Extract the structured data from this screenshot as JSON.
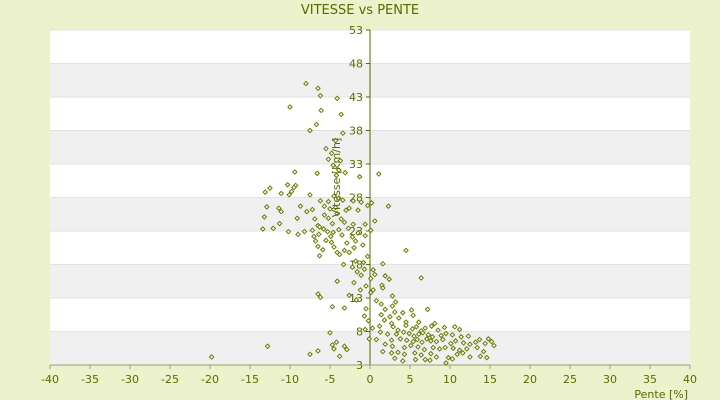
{
  "chart_data": {
    "type": "scatter",
    "title": "VITESSE vs PENTE",
    "xlabel": "Pente [%]",
    "ylabel": "Vitesse [km/h]",
    "xlim": [
      -40,
      40
    ],
    "ylim": [
      3,
      53
    ],
    "xticks": [
      "-40",
      "-35",
      "-30",
      "-25",
      "-20",
      "-15",
      "-10",
      "-5",
      "0",
      "5",
      "10",
      "15",
      "20",
      "25",
      "30",
      "35",
      "40"
    ],
    "yticks": [
      "53",
      "48",
      "43",
      "38",
      "33",
      "28",
      "23",
      "18",
      "13",
      "8",
      "3"
    ],
    "grid": "horizontal alternating bands",
    "colors": {
      "band": "#f0f0f0",
      "plot_bg": "#ffffff",
      "marker": "#6b7a00",
      "axis": "#556b00",
      "background": "#ebf2cc"
    },
    "points": [
      [
        -19.8,
        4.2
      ],
      [
        -12.8,
        5.8
      ],
      [
        -7.5,
        4.6
      ],
      [
        -6.5,
        5.1
      ],
      [
        -4.5,
        5.4
      ],
      [
        -3.8,
        4.3
      ],
      [
        -3.2,
        5.8
      ],
      [
        -2.9,
        5.3
      ],
      [
        -5,
        7.8
      ],
      [
        -4.7,
        6
      ],
      [
        -4.2,
        6.4
      ],
      [
        -8,
        45
      ],
      [
        -6.5,
        44.3
      ],
      [
        -6.2,
        43.2
      ],
      [
        -4.1,
        42.8
      ],
      [
        -10,
        41.5
      ],
      [
        -6.1,
        41
      ],
      [
        -3.6,
        40.4
      ],
      [
        -6.7,
        38.9
      ],
      [
        -7.5,
        38
      ],
      [
        -3.4,
        37.6
      ],
      [
        -4.3,
        36.5
      ],
      [
        -5.5,
        35.3
      ],
      [
        -4.8,
        34.6
      ],
      [
        -5.2,
        33.7
      ],
      [
        -3.7,
        33.5
      ],
      [
        -4.6,
        32.8
      ],
      [
        -3.9,
        32.1
      ],
      [
        -9.4,
        31.8
      ],
      [
        -6.6,
        31.6
      ],
      [
        -4.2,
        31.3
      ],
      [
        -3.1,
        31.7
      ],
      [
        -1.3,
        31.1
      ],
      [
        1.1,
        31.5
      ],
      [
        -10.3,
        29.9
      ],
      [
        -9.3,
        29.8
      ],
      [
        -9.5,
        29.5
      ],
      [
        -12.5,
        29.4
      ],
      [
        -13.1,
        28.8
      ],
      [
        -9.8,
        28.9
      ],
      [
        -10.1,
        28.4
      ],
      [
        -11.1,
        28.6
      ],
      [
        -7.5,
        28.4
      ],
      [
        -4.5,
        28.2
      ],
      [
        -3.9,
        27.9
      ],
      [
        -3.4,
        27.6
      ],
      [
        -5.2,
        27.4
      ],
      [
        -6.2,
        27.5
      ],
      [
        -2.1,
        27.5
      ],
      [
        -1.1,
        27.3
      ],
      [
        0.2,
        27.2
      ],
      [
        -0.3,
        26.8
      ],
      [
        -12.9,
        26.6
      ],
      [
        -11.4,
        26.4
      ],
      [
        -8.7,
        26.7
      ],
      [
        -7.2,
        26.2
      ],
      [
        -5.7,
        26.7
      ],
      [
        -5,
        26.3
      ],
      [
        -4.3,
        26.5
      ],
      [
        -3,
        26.1
      ],
      [
        -2.6,
        26.4
      ],
      [
        -1.5,
        26.1
      ],
      [
        2.3,
        26.7
      ],
      [
        -11.1,
        25.9
      ],
      [
        -7.9,
        25.9
      ],
      [
        -5.7,
        25.4
      ],
      [
        -4.1,
        25.6
      ],
      [
        -13.2,
        25.1
      ],
      [
        -9.1,
        24.9
      ],
      [
        -6.9,
        24.8
      ],
      [
        -5.2,
        24.9
      ],
      [
        -3.6,
        24.8
      ],
      [
        -11.3,
        24.1
      ],
      [
        -6.5,
        23.8
      ],
      [
        -4.7,
        24.1
      ],
      [
        -3.2,
        24.3
      ],
      [
        -2.1,
        24
      ],
      [
        -0.6,
        24
      ],
      [
        0.6,
        24.5
      ],
      [
        -13.4,
        23.3
      ],
      [
        -12.1,
        23.4
      ],
      [
        -10.2,
        22.9
      ],
      [
        -8.2,
        22.9
      ],
      [
        -7.2,
        23.1
      ],
      [
        -6.3,
        23.6
      ],
      [
        -5.8,
        23.3
      ],
      [
        -5.3,
        22.9
      ],
      [
        -4.6,
        22.8
      ],
      [
        -3.9,
        23.2
      ],
      [
        -2.7,
        23.4
      ],
      [
        -1.5,
        22.7
      ],
      [
        0.1,
        23.1
      ],
      [
        -9,
        22.5
      ],
      [
        -7,
        22.2
      ],
      [
        -6.4,
        22.5
      ],
      [
        -4.9,
        22.2
      ],
      [
        -3.5,
        22.4
      ],
      [
        -2.2,
        22.1
      ],
      [
        -0.6,
        22.3
      ],
      [
        -6.8,
        21.5
      ],
      [
        -5.5,
        21.6
      ],
      [
        -4.8,
        21.3
      ],
      [
        -2.9,
        21.2
      ],
      [
        -1.8,
        21.5
      ],
      [
        -6.5,
        20.7
      ],
      [
        -5.9,
        20.2
      ],
      [
        -4.5,
        20.6
      ],
      [
        -3.2,
        20.1
      ],
      [
        -2,
        20.5
      ],
      [
        -0.9,
        20.9
      ],
      [
        -6.3,
        19.3
      ],
      [
        -4.1,
        19.8
      ],
      [
        -2.6,
        19.8
      ],
      [
        -3.8,
        19.5
      ],
      [
        -0.3,
        19.2
      ],
      [
        4.5,
        20.1
      ],
      [
        -1.8,
        18.5
      ],
      [
        -0.8,
        18.3
      ],
      [
        1.6,
        18.1
      ],
      [
        -3.3,
        18
      ],
      [
        -2.2,
        17.6
      ],
      [
        -0.7,
        17.3
      ],
      [
        -1.6,
        16.9
      ],
      [
        0.4,
        17.2
      ],
      [
        -1.1,
        16.4
      ],
      [
        0.6,
        16.5
      ],
      [
        1.9,
        16.3
      ],
      [
        -4.1,
        15.5
      ],
      [
        -2,
        15.3
      ],
      [
        0.1,
        15.9
      ],
      [
        2.4,
        15.8
      ],
      [
        -0.5,
        14.8
      ],
      [
        1.5,
        14.9
      ],
      [
        6.4,
        16
      ],
      [
        -1.2,
        14.2
      ],
      [
        0.4,
        14.2
      ],
      [
        1.6,
        14.5
      ],
      [
        -6.5,
        13.6
      ],
      [
        -6.2,
        13.1
      ],
      [
        -2.6,
        13.4
      ],
      [
        0.1,
        13.8
      ],
      [
        2.8,
        13.3
      ],
      [
        -1.7,
        12.7
      ],
      [
        0.8,
        12.6
      ],
      [
        1.4,
        12.1
      ],
      [
        2.8,
        11.8
      ],
      [
        3.2,
        12.4
      ],
      [
        -4.7,
        11.7
      ],
      [
        -3.2,
        11.5
      ],
      [
        -0.5,
        11.4
      ],
      [
        1.9,
        11.3
      ],
      [
        3.1,
        10.9
      ],
      [
        4.1,
        10.8
      ],
      [
        5.2,
        11.2
      ],
      [
        7.2,
        11.3
      ],
      [
        -0.7,
        10.3
      ],
      [
        1.4,
        10.5
      ],
      [
        2.5,
        10.2
      ],
      [
        3.6,
        10
      ],
      [
        5.4,
        10.4
      ],
      [
        -0.2,
        9.6
      ],
      [
        1.8,
        9.7
      ],
      [
        2.7,
        9.2
      ],
      [
        4.5,
        9.4
      ],
      [
        6.1,
        9.4
      ],
      [
        8.1,
        9.2
      ],
      [
        1.2,
        8.8
      ],
      [
        2.9,
        8.7
      ],
      [
        3.5,
        8.2
      ],
      [
        4.5,
        8.9
      ],
      [
        5.3,
        8.4
      ],
      [
        5.8,
        8.7
      ],
      [
        6.4,
        8.1
      ],
      [
        6.9,
        8.5
      ],
      [
        7.7,
        8.8
      ],
      [
        8.5,
        8.2
      ],
      [
        9.3,
        8.6
      ],
      [
        10.6,
        8.7
      ],
      [
        11.2,
        8.3
      ],
      [
        -0.6,
        8.3
      ],
      [
        0.3,
        8.5
      ],
      [
        1.3,
        7.9
      ],
      [
        2.2,
        7.6
      ],
      [
        3.3,
        7.6
      ],
      [
        4.2,
        7.9
      ],
      [
        4.9,
        7.7
      ],
      [
        5.5,
        7.3
      ],
      [
        6.1,
        7.6
      ],
      [
        6.6,
        7.8
      ],
      [
        7.3,
        7.5
      ],
      [
        7.8,
        7.2
      ],
      [
        8.9,
        7.4
      ],
      [
        9.5,
        7.7
      ],
      [
        10.3,
        7.5
      ],
      [
        11.4,
        7.2
      ],
      [
        12.3,
        7.3
      ],
      [
        14.8,
        6.9
      ],
      [
        13.7,
        6.8
      ],
      [
        15.2,
        6.5
      ],
      [
        -0.1,
        6.9
      ],
      [
        0.8,
        6.8
      ],
      [
        2.7,
        6.7
      ],
      [
        3.8,
        6.9
      ],
      [
        4.6,
        6.7
      ],
      [
        5.4,
        6.5
      ],
      [
        5.9,
        6.8
      ],
      [
        6.5,
        6.4
      ],
      [
        7.1,
        6.9
      ],
      [
        7.6,
        6.6
      ],
      [
        8.3,
        6.5
      ],
      [
        9.1,
        6.8
      ],
      [
        10.1,
        6.2
      ],
      [
        10.7,
        6.6
      ],
      [
        11.7,
        6.3
      ],
      [
        12.5,
        6.1
      ],
      [
        13.2,
        6.4
      ],
      [
        14.4,
        6.2
      ],
      [
        15.5,
        5.9
      ],
      [
        1.9,
        6.1
      ],
      [
        2.8,
        5.8
      ],
      [
        4.3,
        5.6
      ],
      [
        5.1,
        5.9
      ],
      [
        6,
        5.7
      ],
      [
        6.8,
        5.3
      ],
      [
        7.9,
        5.6
      ],
      [
        8.7,
        5.4
      ],
      [
        9.4,
        5.6
      ],
      [
        10.4,
        5.5
      ],
      [
        11.2,
        5.2
      ],
      [
        12.1,
        5.4
      ],
      [
        13.4,
        5.6
      ],
      [
        14.2,
        5
      ],
      [
        1.6,
        5
      ],
      [
        2.7,
        4.8
      ],
      [
        3.5,
        4.9
      ],
      [
        4.3,
        4.6
      ],
      [
        5.6,
        4.8
      ],
      [
        6.4,
        4.5
      ],
      [
        7.6,
        4.7
      ],
      [
        8.3,
        4.2
      ],
      [
        9.8,
        4.1
      ],
      [
        10.9,
        4.6
      ],
      [
        11.6,
        4.8
      ],
      [
        13.8,
        4.3
      ],
      [
        14.6,
        4.1
      ],
      [
        3.1,
        4
      ],
      [
        4.1,
        3.6
      ],
      [
        5.7,
        3.8
      ],
      [
        6.9,
        3.8
      ],
      [
        7.5,
        3.7
      ],
      [
        9.5,
        3.3
      ],
      [
        10.3,
        3.9
      ],
      [
        12.5,
        4.2
      ]
    ]
  }
}
